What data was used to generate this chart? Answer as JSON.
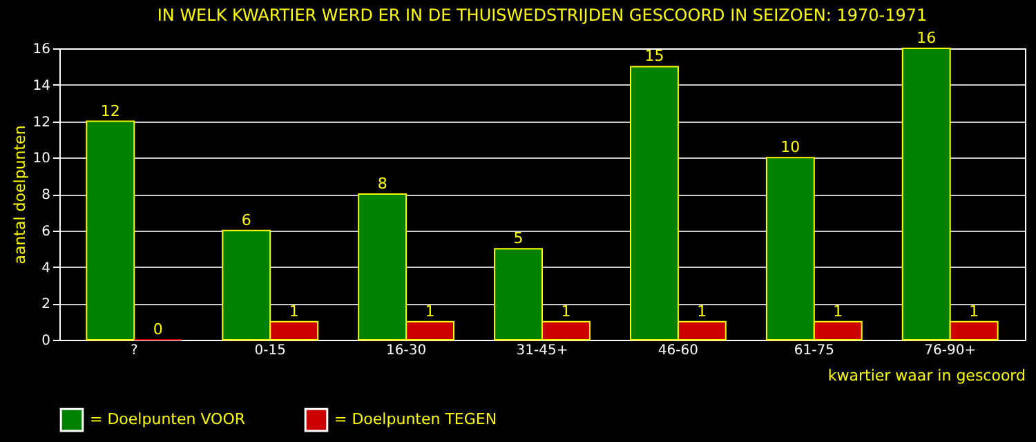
{
  "chart_data": {
    "type": "bar",
    "title": "IN WELK KWARTIER WERD ER IN DE THUISWEDSTRIJDEN GESCOORD IN SEIZOEN: 1970-1971",
    "categories": [
      "?",
      "0-15",
      "16-30",
      "31-45+",
      "46-60",
      "61-75",
      "76-90+"
    ],
    "series": [
      {
        "name": "= Doelpunten VOOR",
        "color": "#008000",
        "values": [
          12,
          6,
          8,
          5,
          15,
          10,
          16
        ]
      },
      {
        "name": "= Doelpunten TEGEN",
        "color": "#cc0000",
        "values": [
          0,
          1,
          1,
          1,
          1,
          1,
          1
        ]
      }
    ],
    "xlabel": "kwartier waar in gescoord",
    "ylabel": "aantal doelpunten",
    "ylim": [
      0,
      16
    ],
    "yticks": [
      0,
      2,
      4,
      6,
      8,
      10,
      12,
      14,
      16
    ],
    "grid": "y",
    "legend": "bottom",
    "data_labels": true
  }
}
